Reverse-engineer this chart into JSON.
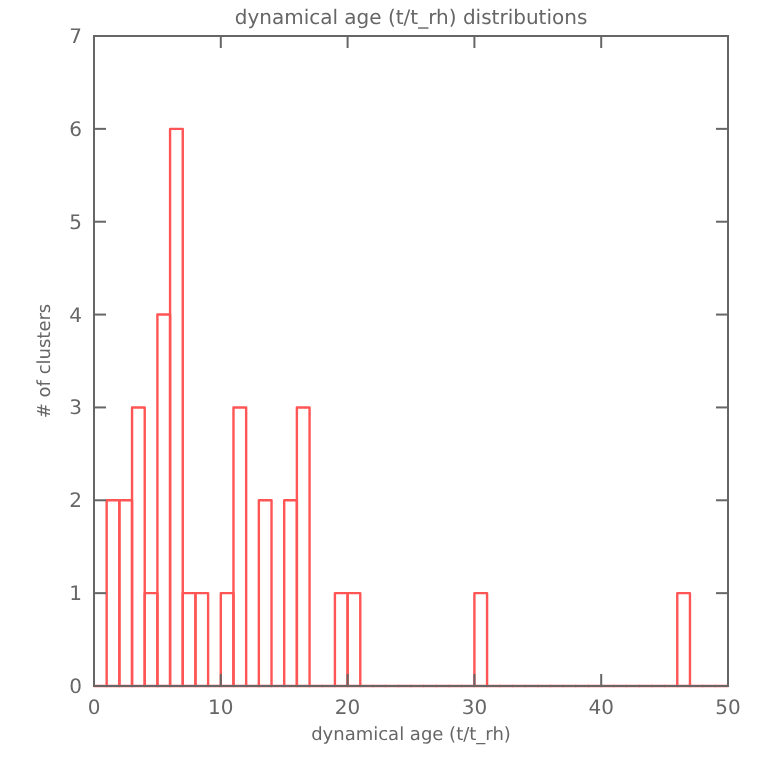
{
  "chart_data": {
    "type": "histogram",
    "title": "dynamical age (t/t_rh) distributions",
    "xlabel": "dynamical age (t/t_rh)",
    "ylabel": "# of clusters",
    "color": "#ff5555",
    "bins": [
      0,
      1,
      2,
      3,
      4,
      5,
      6,
      7,
      8,
      9,
      10,
      11,
      12,
      13,
      14,
      15,
      16,
      17,
      18,
      19,
      20,
      21,
      22,
      23,
      24,
      25,
      26,
      27,
      28,
      29,
      30,
      31,
      32,
      33,
      34,
      35,
      36,
      37,
      38,
      39,
      40,
      41,
      42,
      43,
      44,
      45,
      46,
      47,
      48,
      49,
      50
    ],
    "values": [
      0,
      2,
      2,
      3,
      1,
      4,
      6,
      1,
      1,
      0,
      1,
      3,
      0,
      2,
      0,
      2,
      3,
      0,
      0,
      1,
      1,
      0,
      0,
      0,
      0,
      0,
      0,
      0,
      0,
      0,
      1,
      0,
      0,
      0,
      0,
      0,
      0,
      0,
      0,
      0,
      0,
      0,
      0,
      0,
      0,
      0,
      1,
      0,
      0,
      0
    ],
    "xlim": [
      0,
      50
    ],
    "ylim": [
      0,
      7
    ],
    "xticks": [
      0,
      10,
      20,
      30,
      40,
      50
    ],
    "yticks": [
      0,
      1,
      2,
      3,
      4,
      5,
      6,
      7
    ],
    "grid": false
  }
}
